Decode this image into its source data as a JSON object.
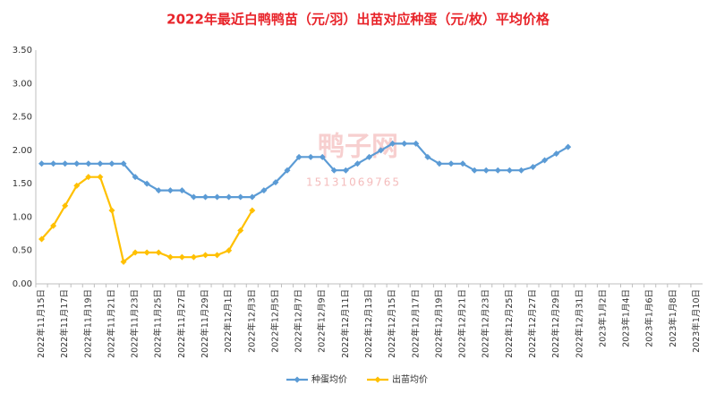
{
  "chart_data": {
    "type": "line",
    "title": "2022年最近白鸭鸭苗（元/羽）出苗对应种蛋（元/枚）平均价格",
    "annotations": [
      "鸭子网",
      "15131069765"
    ],
    "categories": [
      "2022年11月15日",
      null,
      "2022年11月17日",
      null,
      "2022年11月19日",
      null,
      "2022年11月21日",
      null,
      "2022年11月23日",
      null,
      "2022年11月25日",
      null,
      "2022年11月27日",
      null,
      "2022年11月29日",
      null,
      "2022年12月1日",
      null,
      "2022年12月3日",
      null,
      "2022年12月5日",
      null,
      "2022年12月7日",
      null,
      "2022年12月9日",
      null,
      "2022年12月11日",
      null,
      "2022年12月13日",
      null,
      "2022年12月15日",
      null,
      "2022年12月17日",
      null,
      "2022年12月19日",
      null,
      "2022年12月21日",
      null,
      "2022年12月23日",
      null,
      "2022年12月25日",
      null,
      "2022年12月27日",
      null,
      "2022年12月29日",
      null,
      "2022年12月31日",
      null,
      "2023年1月2日",
      null,
      "2023年1月4日",
      null,
      "2023年1月6日",
      null,
      "2023年1月8日",
      null,
      "2023年1月10日"
    ],
    "series": [
      {
        "name": "种蛋均价",
        "color": "#5b9bd5",
        "values": [
          1.8,
          1.8,
          1.8,
          1.8,
          1.8,
          1.8,
          1.8,
          1.8,
          1.6,
          1.5,
          1.4,
          1.4,
          1.4,
          1.3,
          1.3,
          1.3,
          1.3,
          1.3,
          1.3,
          1.4,
          1.52,
          1.7,
          1.9,
          1.9,
          1.9,
          1.7,
          1.7,
          1.8,
          1.9,
          2.0,
          2.1,
          2.1,
          2.1,
          1.9,
          1.8,
          1.8,
          1.8,
          1.7,
          1.7,
          1.7,
          1.7,
          1.7,
          1.75,
          1.85,
          1.95,
          2.05,
          null,
          null,
          null,
          null,
          null,
          null,
          null,
          null,
          null,
          null,
          null
        ]
      },
      {
        "name": "出苗均价",
        "color": "#ffc000",
        "values": [
          0.67,
          0.87,
          1.17,
          1.47,
          1.6,
          1.6,
          1.1,
          0.33,
          0.47,
          0.47,
          0.47,
          0.4,
          0.4,
          0.4,
          0.43,
          0.43,
          0.5,
          0.8,
          1.1,
          null,
          null,
          null,
          null,
          null,
          null,
          null,
          null,
          null,
          null,
          null,
          null,
          null,
          null,
          null,
          null,
          null,
          null,
          null,
          null,
          null,
          null,
          null,
          null,
          null,
          null,
          null,
          null,
          null,
          null,
          null,
          null,
          null,
          null,
          null,
          null,
          null,
          null
        ]
      }
    ],
    "ylim": [
      0,
      3.5
    ],
    "yticks": [
      {
        "value": 0,
        "label": "0.00"
      },
      {
        "value": 0.5,
        "label": "0.50"
      },
      {
        "value": 1,
        "label": "1.00"
      },
      {
        "value": 1.5,
        "label": "1.50"
      },
      {
        "value": 2,
        "label": "2.00"
      },
      {
        "value": 2.5,
        "label": "2.50"
      },
      {
        "value": 3,
        "label": "3.00"
      },
      {
        "value": 3.5,
        "label": "3.50"
      }
    ],
    "grid": false,
    "legend": "bottom"
  }
}
